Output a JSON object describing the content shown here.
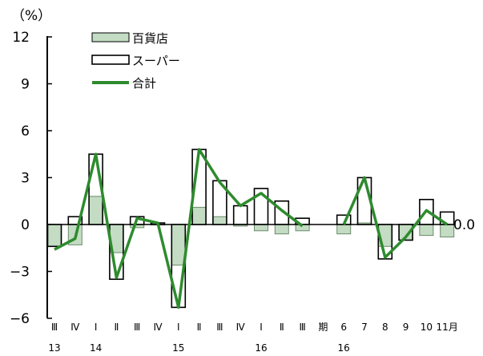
{
  "chart_data": {
    "type": "bar",
    "unit_label": "（%）",
    "ylim": [
      -6,
      12
    ],
    "y_ticks": [
      12,
      9,
      6,
      3,
      0,
      -3,
      -6
    ],
    "y_tick_labels": [
      "12",
      "9",
      "6",
      "3",
      "0",
      "−3",
      "−6"
    ],
    "categories": [
      "Ⅲ",
      "Ⅳ",
      "Ⅰ",
      "Ⅱ",
      "Ⅲ",
      "Ⅳ",
      "Ⅰ",
      "Ⅱ",
      "Ⅲ",
      "Ⅳ",
      "Ⅰ",
      "Ⅱ",
      "Ⅲ",
      "期",
      "6",
      "7",
      "8",
      "9",
      "10",
      "11月"
    ],
    "year_labels": [
      {
        "category_index": 0,
        "label": "13"
      },
      {
        "category_index": 2,
        "label": "14"
      },
      {
        "category_index": 6,
        "label": "15"
      },
      {
        "category_index": 10,
        "label": "16"
      },
      {
        "category_index": 14,
        "label": "16"
      }
    ],
    "legend": [
      "百貨店",
      "スーパー",
      "合計"
    ],
    "series": [
      {
        "name": "百貨店",
        "kind": "bar-fill",
        "color": "#c3dcc3",
        "values": [
          -1.4,
          -1.3,
          1.8,
          -1.8,
          -0.2,
          0.0,
          -2.6,
          1.1,
          0.5,
          -0.1,
          -0.4,
          -0.6,
          -0.4,
          null,
          -0.6,
          0.1,
          -1.4,
          -1.0,
          -0.7,
          -0.8
        ]
      },
      {
        "name": "スーパー",
        "kind": "bar-outline",
        "color": "#000000",
        "values": [
          -1.4,
          0.5,
          4.5,
          -3.5,
          0.5,
          0.1,
          -5.3,
          4.8,
          2.8,
          1.2,
          2.3,
          1.5,
          0.4,
          null,
          0.6,
          3.0,
          -2.2,
          -1.0,
          1.6,
          0.8
        ]
      },
      {
        "name": "合計",
        "kind": "line",
        "color": "#2e8b2e",
        "values": [
          -1.6,
          -0.9,
          4.5,
          -3.4,
          0.4,
          0.1,
          -5.3,
          4.8,
          2.7,
          1.2,
          2.0,
          0.9,
          -0.1,
          null,
          0.0,
          3.0,
          -2.1,
          -0.8,
          0.9,
          0.0
        ]
      }
    ],
    "end_label": "0.0",
    "grid": false
  }
}
